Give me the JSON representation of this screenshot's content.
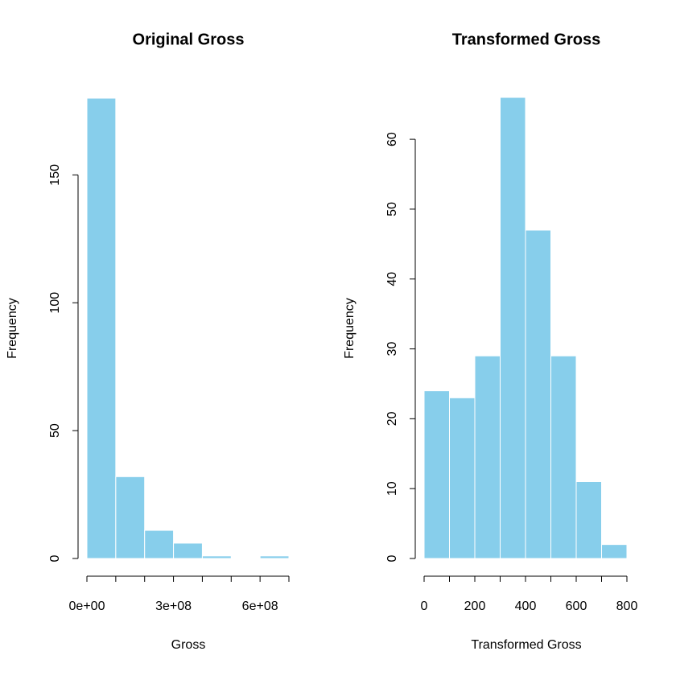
{
  "chart_data": [
    {
      "type": "histogram",
      "title": "Original Gross",
      "xlabel": "Gross",
      "ylabel": "Frequency",
      "bins": [
        0,
        100000000,
        200000000,
        300000000,
        400000000,
        500000000,
        600000000,
        700000000
      ],
      "values": [
        180,
        32,
        11,
        6,
        1,
        0,
        1
      ],
      "color": "#87ceeb",
      "xlim": [
        0,
        700000000
      ],
      "ylim": [
        0,
        180
      ],
      "xticks": [
        {
          "value": 0,
          "label": "0e+00"
        },
        {
          "value": 100000000,
          "label": null
        },
        {
          "value": 200000000,
          "label": null
        },
        {
          "value": 300000000,
          "label": "3e+08"
        },
        {
          "value": 400000000,
          "label": null
        },
        {
          "value": 500000000,
          "label": null
        },
        {
          "value": 600000000,
          "label": "6e+08"
        },
        {
          "value": 700000000,
          "label": null
        }
      ],
      "yticks": [
        0,
        50,
        100,
        150
      ]
    },
    {
      "type": "histogram",
      "title": "Transformed Gross",
      "xlabel": "Transformed Gross",
      "ylabel": "Frequency",
      "bins": [
        0,
        100,
        200,
        300,
        400,
        500,
        600,
        700,
        800
      ],
      "values": [
        24,
        23,
        29,
        66,
        47,
        29,
        11,
        2
      ],
      "color": "#87ceeb",
      "xlim": [
        0,
        800
      ],
      "ylim": [
        0,
        66
      ],
      "xticks": [
        0,
        {
          "value": 100,
          "label": null
        },
        200,
        {
          "value": 300,
          "label": null
        },
        400,
        {
          "value": 500,
          "label": null
        },
        600,
        {
          "value": 700,
          "label": null
        },
        800
      ],
      "yticks": [
        0,
        10,
        20,
        30,
        40,
        50,
        60
      ]
    }
  ]
}
